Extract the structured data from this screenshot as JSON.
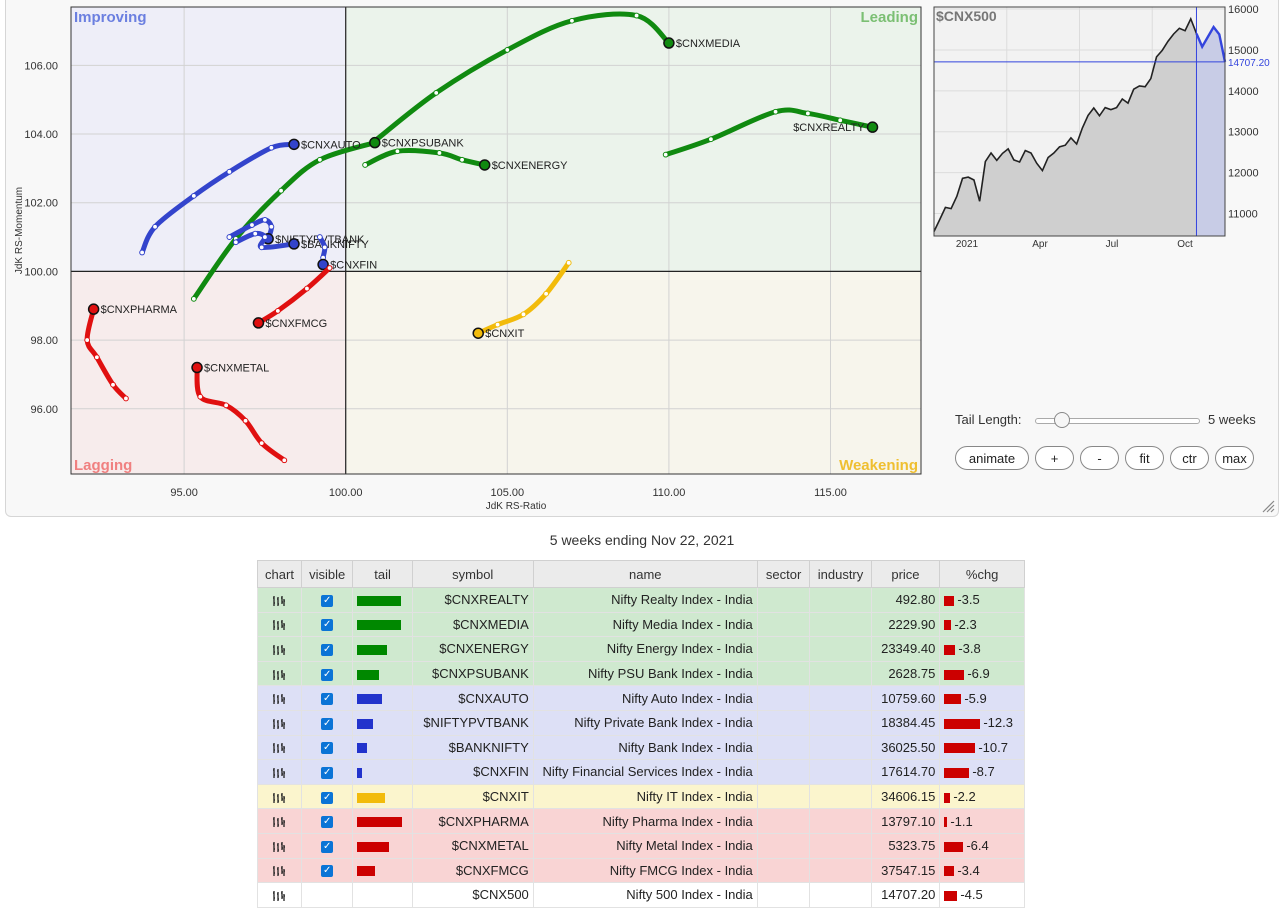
{
  "chart_data": [
    {
      "type": "scatter",
      "title": "",
      "xlabel": "JdK RS-Ratio",
      "ylabel": "JdK RS-Momentum",
      "xlim": [
        91.5,
        117.8
      ],
      "ylim": [
        94.1,
        107.7
      ],
      "xticks": [
        "95.00",
        "100.00",
        "105.00",
        "110.00",
        "115.00"
      ],
      "xtick_values": [
        95,
        100,
        105,
        110,
        115
      ],
      "yticks": [
        "96.00",
        "98.00",
        "100.00",
        "102.00",
        "104.00",
        "106.00"
      ],
      "ytick_values": [
        96,
        98,
        100,
        102,
        104,
        106
      ],
      "center": [
        100,
        100
      ],
      "quadrants": {
        "improving": "Improving",
        "leading": "Leading",
        "lagging": "Lagging",
        "weakening": "Weakening"
      },
      "quadrant_colors": {
        "improving": "#eeeef8",
        "leading": "#ebf3eb",
        "lagging": "#f7ecec",
        "weakening": "#f7f5ec"
      },
      "series": [
        {
          "name": "$CNXREALTY",
          "color": "#108a10",
          "points": [
            [
              109.9,
              103.4
            ],
            [
              111.3,
              103.85
            ],
            [
              113.3,
              104.65
            ],
            [
              114.3,
              104.6
            ],
            [
              115.3,
              104.4
            ],
            [
              116.3,
              104.2
            ]
          ]
        },
        {
          "name": "$CNXMEDIA",
          "color": "#108a10",
          "points": [
            [
              100.9,
              103.8
            ],
            [
              102.8,
              105.2
            ],
            [
              105.0,
              106.45
            ],
            [
              107.0,
              107.3
            ],
            [
              109.0,
              107.45
            ],
            [
              110.0,
              106.65
            ]
          ]
        },
        {
          "name": "$CNXENERGY",
          "color": "#108a10",
          "points": [
            [
              100.6,
              103.1
            ],
            [
              101.6,
              103.5
            ],
            [
              102.9,
              103.45
            ],
            [
              103.6,
              103.25
            ],
            [
              104.3,
              103.1
            ]
          ]
        },
        {
          "name": "$CNXPSUBANK",
          "color": "#108a10",
          "points": [
            [
              95.3,
              99.2
            ],
            [
              96.6,
              100.95
            ],
            [
              98.0,
              102.35
            ],
            [
              99.2,
              103.25
            ],
            [
              100.9,
              103.75
            ]
          ]
        },
        {
          "name": "$CNXAUTO",
          "color": "#3344cc",
          "points": [
            [
              93.7,
              100.55
            ],
            [
              94.1,
              101.3
            ],
            [
              95.3,
              102.2
            ],
            [
              96.4,
              102.9
            ],
            [
              97.7,
              103.6
            ],
            [
              98.4,
              103.7
            ]
          ]
        },
        {
          "name": "$NIFTYPVTBANK",
          "color": "#3344cc",
          "points": [
            [
              96.4,
              101.0
            ],
            [
              97.1,
              101.35
            ],
            [
              97.5,
              101.5
            ],
            [
              97.7,
              101.3
            ],
            [
              97.6,
              100.95
            ]
          ]
        },
        {
          "name": "$BANKNIFTY",
          "color": "#3344cc",
          "points": [
            [
              96.6,
              100.85
            ],
            [
              97.2,
              101.1
            ],
            [
              97.5,
              101.0
            ],
            [
              97.4,
              100.7
            ],
            [
              98.4,
              100.8
            ]
          ]
        },
        {
          "name": "$CNXFIN",
          "color": "#3344cc",
          "points": [
            [
              99.2,
              101.0
            ],
            [
              99.35,
              100.7
            ],
            [
              99.3,
              100.4
            ],
            [
              99.3,
              100.2
            ]
          ]
        },
        {
          "name": "$CNXIT",
          "color": "#f2bb0b",
          "points": [
            [
              106.9,
              100.25
            ],
            [
              106.2,
              99.35
            ],
            [
              105.5,
              98.75
            ],
            [
              104.7,
              98.45
            ],
            [
              104.1,
              98.2
            ]
          ]
        },
        {
          "name": "$CNXPHARMA",
          "color": "#e01010",
          "points": [
            [
              93.2,
              96.3
            ],
            [
              92.8,
              96.7
            ],
            [
              92.3,
              97.5
            ],
            [
              92.0,
              98.0
            ],
            [
              92.2,
              98.9
            ]
          ]
        },
        {
          "name": "$CNXMETAL",
          "color": "#e01010",
          "points": [
            [
              98.1,
              94.5
            ],
            [
              97.4,
              95.0
            ],
            [
              96.9,
              95.65
            ],
            [
              96.3,
              96.1
            ],
            [
              95.5,
              96.35
            ],
            [
              95.4,
              97.2
            ]
          ]
        },
        {
          "name": "$CNXFMCG",
          "color": "#e01010",
          "points": [
            [
              99.5,
              100.1
            ],
            [
              98.8,
              99.5
            ],
            [
              97.9,
              98.85
            ],
            [
              97.3,
              98.5
            ]
          ]
        }
      ]
    },
    {
      "type": "area",
      "title": "$CNX500",
      "xticks": [
        "2021",
        "Apr",
        "Jul",
        "Oct"
      ],
      "yticks": [
        "11000",
        "12000",
        "13000",
        "14000",
        "15000",
        "16000"
      ],
      "ytick_values": [
        11000,
        12000,
        13000,
        14000,
        15000,
        16000
      ],
      "ylim": [
        10450,
        16050
      ],
      "last_value_label": "14707.20",
      "last_value": 14707.2,
      "values": [
        10560,
        10850,
        11150,
        11120,
        11420,
        11860,
        11890,
        11820,
        11300,
        12270,
        12480,
        12300,
        12470,
        12580,
        12310,
        12260,
        12540,
        12480,
        12230,
        12050,
        12370,
        12480,
        12630,
        12670,
        12850,
        12700,
        13090,
        13400,
        13580,
        13390,
        13590,
        13540,
        13590,
        13800,
        13700,
        14040,
        14120,
        14100,
        14300,
        14830,
        14990,
        15210,
        15390,
        15530,
        15470,
        15760,
        15400,
        15080,
        15320,
        15560,
        15380,
        14707
      ]
    }
  ],
  "controls": {
    "tail_length_label": "Tail Length:",
    "tail_length_value": "5 weeks",
    "tail_slider_fraction": 0.16,
    "buttons": [
      "animate",
      "+",
      "-",
      "fit",
      "ctr",
      "max"
    ]
  },
  "subtitle": "5 weeks ending Nov 22, 2021",
  "table": {
    "headers": [
      "chart",
      "visible",
      "tail",
      "symbol",
      "name",
      "sector",
      "industry",
      "price",
      "%chg"
    ],
    "rows": [
      {
        "quadrant": "leading",
        "tail_color": "#008800",
        "tail": 0.95,
        "symbol": "$CNXREALTY",
        "name": "Nifty Realty Index - India",
        "price": "492.80",
        "chg": "-3.5",
        "visible": true
      },
      {
        "quadrant": "leading",
        "tail_color": "#008800",
        "tail": 0.95,
        "symbol": "$CNXMEDIA",
        "name": "Nifty Media Index - India",
        "price": "2229.90",
        "chg": "-2.3",
        "visible": true
      },
      {
        "quadrant": "leading",
        "tail_color": "#008800",
        "tail": 0.65,
        "symbol": "$CNXENERGY",
        "name": "Nifty Energy Index - India",
        "price": "23349.40",
        "chg": "-3.8",
        "visible": true
      },
      {
        "quadrant": "leading",
        "tail_color": "#008800",
        "tail": 0.48,
        "symbol": "$CNXPSUBANK",
        "name": "Nifty PSU Bank Index - India",
        "price": "2628.75",
        "chg": "-6.9",
        "visible": true
      },
      {
        "quadrant": "improving",
        "tail_color": "#2233cc",
        "tail": 0.55,
        "symbol": "$CNXAUTO",
        "name": "Nifty Auto Index - India",
        "price": "10759.60",
        "chg": "-5.9",
        "visible": true
      },
      {
        "quadrant": "improving",
        "tail_color": "#2233cc",
        "tail": 0.34,
        "symbol": "$NIFTYPVTBANK",
        "name": "Nifty Private Bank Index - India",
        "price": "18384.45",
        "chg": "-12.3",
        "visible": true
      },
      {
        "quadrant": "improving",
        "tail_color": "#2233cc",
        "tail": 0.22,
        "symbol": "$BANKNIFTY",
        "name": "Nifty Bank Index - India",
        "price": "36025.50",
        "chg": "-10.7",
        "visible": true
      },
      {
        "quadrant": "improving",
        "tail_color": "#2233cc",
        "tail": 0.1,
        "symbol": "$CNXFIN",
        "name": "Nifty Financial Services Index - India",
        "price": "17614.70",
        "chg": "-8.7",
        "visible": true
      },
      {
        "quadrant": "weakening",
        "tail_color": "#f2bb0b",
        "tail": 0.6,
        "symbol": "$CNXIT",
        "name": "Nifty IT Index - India",
        "price": "34606.15",
        "chg": "-2.2",
        "visible": true
      },
      {
        "quadrant": "lagging",
        "tail_color": "#cc0000",
        "tail": 0.98,
        "symbol": "$CNXPHARMA",
        "name": "Nifty Pharma Index - India",
        "price": "13797.10",
        "chg": "-1.1",
        "visible": true
      },
      {
        "quadrant": "lagging",
        "tail_color": "#cc0000",
        "tail": 0.7,
        "symbol": "$CNXMETAL",
        "name": "Nifty Metal Index - India",
        "price": "5323.75",
        "chg": "-6.4",
        "visible": true
      },
      {
        "quadrant": "lagging",
        "tail_color": "#cc0000",
        "tail": 0.4,
        "symbol": "$CNXFMCG",
        "name": "Nifty FMCG Index - India",
        "price": "37547.15",
        "chg": "-3.4",
        "visible": true
      },
      {
        "quadrant": "plain",
        "tail_color": "",
        "tail": 0,
        "symbol": "$CNX500",
        "name": "Nifty 500 Index - India",
        "price": "14707.20",
        "chg": "-4.5",
        "visible": false
      }
    ]
  }
}
